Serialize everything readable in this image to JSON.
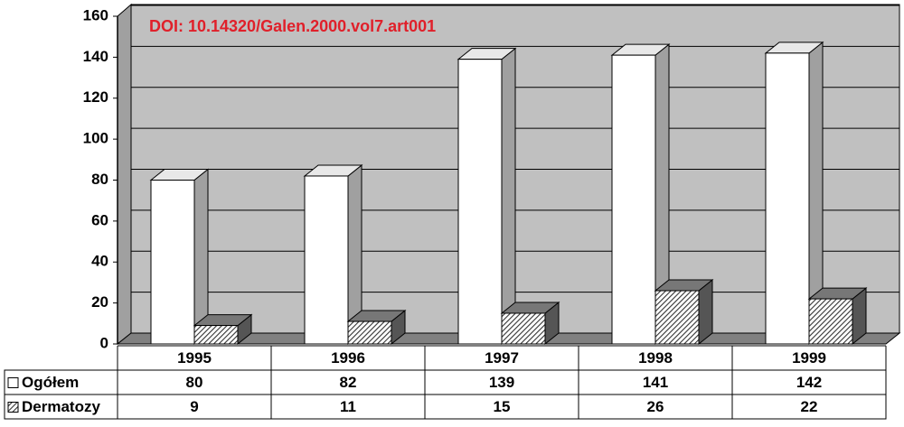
{
  "chart_data": {
    "type": "bar3d",
    "annotation": "DOI: 10.14320/Galen.2000.vol7.art001",
    "categories": [
      "1995",
      "1996",
      "1997",
      "1998",
      "1999"
    ],
    "series": [
      {
        "name": "Ogółem",
        "color": "#ffffff",
        "values": [
          80,
          82,
          139,
          141,
          142
        ]
      },
      {
        "name": "Dermatozy",
        "color": "#333333",
        "hatch": true,
        "values": [
          9,
          11,
          15,
          26,
          22
        ]
      }
    ],
    "ylim": [
      0,
      160
    ],
    "yticks": [
      0,
      20,
      40,
      60,
      80,
      100,
      120,
      140,
      160
    ],
    "grid": true,
    "data_table": true
  }
}
